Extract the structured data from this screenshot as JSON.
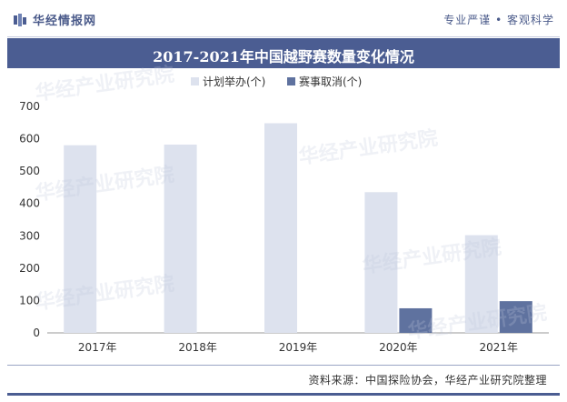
{
  "header": {
    "brand": "华经情报网",
    "tagline": "专业严谨 • 客观科学"
  },
  "title": "2017-2021年中国越野赛数量变化情况",
  "footer": {
    "source": "资料来源：中国探险协会，华经产业研究院整理"
  },
  "watermark": "华经产业研究院",
  "colors": {
    "header_bg": "#4b5d92",
    "series_planned": "#dde2ee",
    "series_cancelled": "#5f729f"
  },
  "chart_data": {
    "type": "bar",
    "categories": [
      "2017年",
      "2018年",
      "2019年",
      "2020年",
      "2021年"
    ],
    "series": [
      {
        "name": "计划举办(个)",
        "values": [
          580,
          582,
          648,
          435,
          302
        ]
      },
      {
        "name": "赛事取消(个)",
        "values": [
          0,
          0,
          0,
          76,
          98
        ]
      }
    ],
    "ylim": [
      0,
      700
    ],
    "yticks": [
      0,
      100,
      200,
      300,
      400,
      500,
      600,
      700
    ],
    "legend": "top-center",
    "grid": false
  }
}
